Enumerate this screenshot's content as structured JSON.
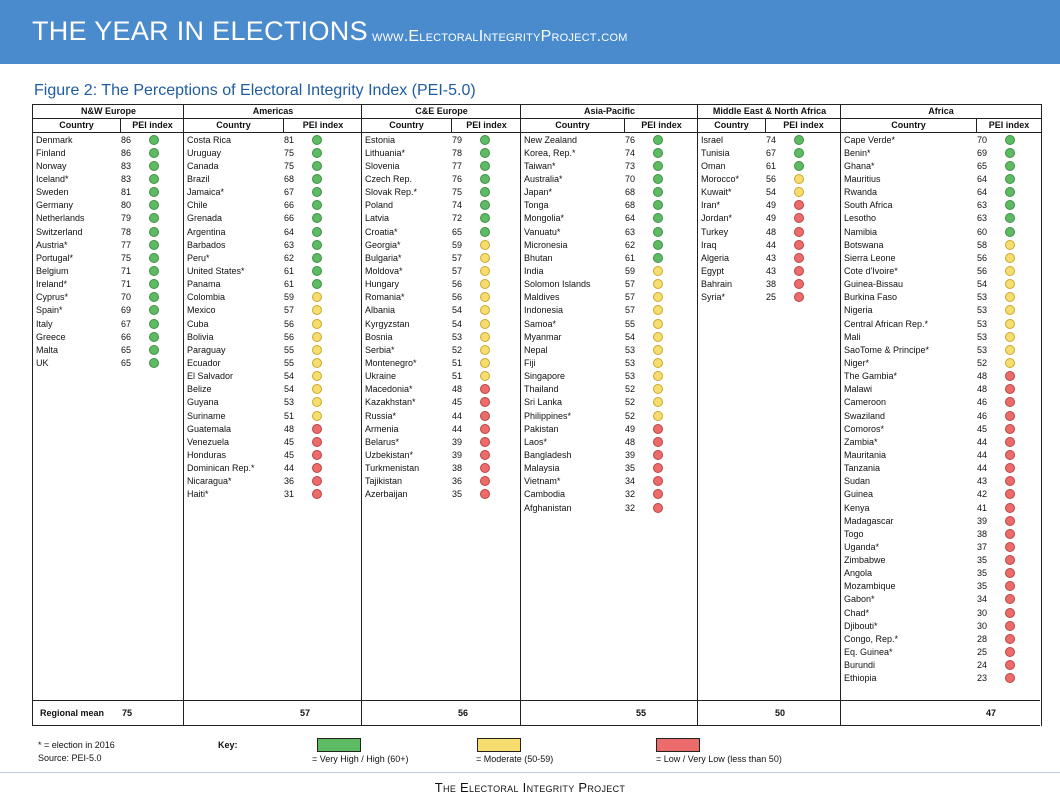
{
  "header": {
    "title": "THE YEAR IN ELECTIONS",
    "url": "www.ElectoralIntegrityProject.com"
  },
  "figure_title": "Figure 2: The Perceptions of Electoral Integrity Index (PEI-5.0)",
  "column_headers": {
    "country": "Country",
    "index": "PEI index"
  },
  "regional_mean_label": "Regional mean",
  "regions": [
    {
      "name": "N&W Europe",
      "mean": "75",
      "rows": [
        [
          "Denmark",
          "86",
          "g"
        ],
        [
          "Finland",
          "86",
          "g"
        ],
        [
          "Norway",
          "83",
          "g"
        ],
        [
          "Iceland*",
          "83",
          "g"
        ],
        [
          "Sweden",
          "81",
          "g"
        ],
        [
          "Germany",
          "80",
          "g"
        ],
        [
          "Netherlands",
          "79",
          "g"
        ],
        [
          "Switzerland",
          "78",
          "g"
        ],
        [
          "Austria*",
          "77",
          "g"
        ],
        [
          "Portugal*",
          "75",
          "g"
        ],
        [
          "Belgium",
          "71",
          "g"
        ],
        [
          "Ireland*",
          "71",
          "g"
        ],
        [
          "Cyprus*",
          "70",
          "g"
        ],
        [
          "Spain*",
          "69",
          "g"
        ],
        [
          "Italy",
          "67",
          "g"
        ],
        [
          "Greece",
          "66",
          "g"
        ],
        [
          "Malta",
          "65",
          "g"
        ],
        [
          "UK",
          "65",
          "g"
        ]
      ]
    },
    {
      "name": "Americas",
      "mean": "57",
      "rows": [
        [
          "Costa Rica",
          "81",
          "g"
        ],
        [
          "Uruguay",
          "75",
          "g"
        ],
        [
          "Canada",
          "75",
          "g"
        ],
        [
          "Brazil",
          "68",
          "g"
        ],
        [
          "Jamaica*",
          "67",
          "g"
        ],
        [
          "Chile",
          "66",
          "g"
        ],
        [
          "Grenada",
          "66",
          "g"
        ],
        [
          "Argentina",
          "64",
          "g"
        ],
        [
          "Barbados",
          "63",
          "g"
        ],
        [
          "Peru*",
          "62",
          "g"
        ],
        [
          "United States*",
          "61",
          "g"
        ],
        [
          "Panama",
          "61",
          "g"
        ],
        [
          "Colombia",
          "59",
          "y"
        ],
        [
          "Mexico",
          "57",
          "y"
        ],
        [
          "Cuba",
          "56",
          "y"
        ],
        [
          "Bolivia",
          "56",
          "y"
        ],
        [
          "Paraguay",
          "55",
          "y"
        ],
        [
          "Ecuador",
          "55",
          "y"
        ],
        [
          "El Salvador",
          "54",
          "y"
        ],
        [
          "Belize",
          "54",
          "y"
        ],
        [
          "Guyana",
          "53",
          "y"
        ],
        [
          "Suriname",
          "51",
          "y"
        ],
        [
          "Guatemala",
          "48",
          "r"
        ],
        [
          "Venezuela",
          "45",
          "r"
        ],
        [
          "Honduras",
          "45",
          "r"
        ],
        [
          "Dominican Rep.*",
          "44",
          "r"
        ],
        [
          "Nicaragua*",
          "36",
          "r"
        ],
        [
          "Haiti*",
          "31",
          "r"
        ]
      ]
    },
    {
      "name": "C&E Europe",
      "mean": "56",
      "rows": [
        [
          "Estonia",
          "79",
          "g"
        ],
        [
          "Lithuania*",
          "78",
          "g"
        ],
        [
          "Slovenia",
          "77",
          "g"
        ],
        [
          "Czech Rep.",
          "76",
          "g"
        ],
        [
          "Slovak Rep.*",
          "75",
          "g"
        ],
        [
          "Poland",
          "74",
          "g"
        ],
        [
          "Latvia",
          "72",
          "g"
        ],
        [
          "Croatia*",
          "65",
          "g"
        ],
        [
          "Georgia*",
          "59",
          "y"
        ],
        [
          "Bulgaria*",
          "57",
          "y"
        ],
        [
          "Moldova*",
          "57",
          "y"
        ],
        [
          "Hungary",
          "56",
          "y"
        ],
        [
          "Romania*",
          "56",
          "y"
        ],
        [
          "Albania",
          "54",
          "y"
        ],
        [
          "Kyrgyzstan",
          "54",
          "y"
        ],
        [
          "Bosnia",
          "53",
          "y"
        ],
        [
          "Serbia*",
          "52",
          "y"
        ],
        [
          "Montenegro*",
          "51",
          "y"
        ],
        [
          "Ukraine",
          "51",
          "y"
        ],
        [
          "Macedonia*",
          "48",
          "r"
        ],
        [
          "Kazakhstan*",
          "45",
          "r"
        ],
        [
          "Russia*",
          "44",
          "r"
        ],
        [
          "Armenia",
          "44",
          "r"
        ],
        [
          "Belarus*",
          "39",
          "r"
        ],
        [
          "Uzbekistan*",
          "39",
          "r"
        ],
        [
          "Turkmenistan",
          "38",
          "r"
        ],
        [
          "Tajikistan",
          "36",
          "r"
        ],
        [
          "Azerbaijan",
          "35",
          "r"
        ]
      ]
    },
    {
      "name": "Asia-Pacific",
      "mean": "55",
      "rows": [
        [
          "New Zealand",
          "76",
          "g"
        ],
        [
          "Korea, Rep.*",
          "74",
          "g"
        ],
        [
          "Taiwan*",
          "73",
          "g"
        ],
        [
          "Australia*",
          "70",
          "g"
        ],
        [
          "Japan*",
          "68",
          "g"
        ],
        [
          "Tonga",
          "68",
          "g"
        ],
        [
          "Mongolia*",
          "64",
          "g"
        ],
        [
          "Vanuatu*",
          "63",
          "g"
        ],
        [
          "Micronesia",
          "62",
          "g"
        ],
        [
          "Bhutan",
          "61",
          "g"
        ],
        [
          "India",
          "59",
          "y"
        ],
        [
          "Solomon Islands",
          "57",
          "y"
        ],
        [
          "Maldives",
          "57",
          "y"
        ],
        [
          "Indonesia",
          "57",
          "y"
        ],
        [
          "Samoa*",
          "55",
          "y"
        ],
        [
          "Myanmar",
          "54",
          "y"
        ],
        [
          "Nepal",
          "53",
          "y"
        ],
        [
          "Fiji",
          "53",
          "y"
        ],
        [
          "Singapore",
          "53",
          "y"
        ],
        [
          "Thailand",
          "52",
          "y"
        ],
        [
          "Sri Lanka",
          "52",
          "y"
        ],
        [
          "Philippines*",
          "52",
          "y"
        ],
        [
          "Pakistan",
          "49",
          "r"
        ],
        [
          "Laos*",
          "48",
          "r"
        ],
        [
          "Bangladesh",
          "39",
          "r"
        ],
        [
          "Malaysia",
          "35",
          "r"
        ],
        [
          "Vietnam*",
          "34",
          "r"
        ],
        [
          "Cambodia",
          "32",
          "r"
        ],
        [
          "Afghanistan",
          "32",
          "r"
        ]
      ]
    },
    {
      "name": "Middle East & North Africa",
      "mean": "50",
      "rows": [
        [
          "Israel",
          "74",
          "g"
        ],
        [
          "Tunisia",
          "67",
          "g"
        ],
        [
          "Oman",
          "61",
          "g"
        ],
        [
          "Morocco*",
          "56",
          "y"
        ],
        [
          "Kuwait*",
          "54",
          "y"
        ],
        [
          "Iran*",
          "49",
          "r"
        ],
        [
          "Jordan*",
          "49",
          "r"
        ],
        [
          "Turkey",
          "48",
          "r"
        ],
        [
          "Iraq",
          "44",
          "r"
        ],
        [
          "Algeria",
          "43",
          "r"
        ],
        [
          "Egypt",
          "43",
          "r"
        ],
        [
          "Bahrain",
          "38",
          "r"
        ],
        [
          "Syria*",
          "25",
          "r"
        ]
      ]
    },
    {
      "name": "Africa",
      "mean": "47",
      "rows": [
        [
          "Cape Verde*",
          "70",
          "g"
        ],
        [
          "Benin*",
          "69",
          "g"
        ],
        [
          "Ghana*",
          "65",
          "g"
        ],
        [
          "Mauritius",
          "64",
          "g"
        ],
        [
          "Rwanda",
          "64",
          "g"
        ],
        [
          "South Africa",
          "63",
          "g"
        ],
        [
          "Lesotho",
          "63",
          "g"
        ],
        [
          "Namibia",
          "60",
          "g"
        ],
        [
          "Botswana",
          "58",
          "y"
        ],
        [
          "Sierra Leone",
          "56",
          "y"
        ],
        [
          "Cote d'Ivoire*",
          "56",
          "y"
        ],
        [
          "Guinea-Bissau",
          "54",
          "y"
        ],
        [
          "Burkina Faso",
          "53",
          "y"
        ],
        [
          "Nigeria",
          "53",
          "y"
        ],
        [
          "Central African Rep.*",
          "53",
          "y"
        ],
        [
          "Mali",
          "53",
          "y"
        ],
        [
          "SaoTome & Principe*",
          "53",
          "y"
        ],
        [
          "Niger*",
          "52",
          "y"
        ],
        [
          "The Gambia*",
          "48",
          "r"
        ],
        [
          "Malawi",
          "48",
          "r"
        ],
        [
          "Cameroon",
          "46",
          "r"
        ],
        [
          "Swaziland",
          "46",
          "r"
        ],
        [
          "Comoros*",
          "45",
          "r"
        ],
        [
          "Zambia*",
          "44",
          "r"
        ],
        [
          "Mauritania",
          "44",
          "r"
        ],
        [
          "Tanzania",
          "44",
          "r"
        ],
        [
          "Sudan",
          "43",
          "r"
        ],
        [
          "Guinea",
          "42",
          "r"
        ],
        [
          "Kenya",
          "41",
          "r"
        ],
        [
          "Madagascar",
          "39",
          "r"
        ],
        [
          "Togo",
          "38",
          "r"
        ],
        [
          "Uganda*",
          "37",
          "r"
        ],
        [
          "Zimbabwe",
          "35",
          "r"
        ],
        [
          "Angola",
          "35",
          "r"
        ],
        [
          "Mozambique",
          "35",
          "r"
        ],
        [
          "Gabon*",
          "34",
          "r"
        ],
        [
          "Chad*",
          "30",
          "r"
        ],
        [
          "Djibouti*",
          "30",
          "r"
        ],
        [
          "Congo, Rep.*",
          "28",
          "r"
        ],
        [
          "Eq. Guinea*",
          "25",
          "r"
        ],
        [
          "Burundi",
          "24",
          "r"
        ],
        [
          "Ethiopia",
          "23",
          "r"
        ]
      ]
    }
  ],
  "notes": {
    "election": "* = election in 2016",
    "source": "Source: PEI-5.0"
  },
  "key": {
    "label": "Key:",
    "items": [
      {
        "color": "#5dbb63",
        "text": "= Very High / High (60+)"
      },
      {
        "color": "#f7dc6f",
        "text": "= Moderate (50-59)"
      },
      {
        "color": "#ec6b6b",
        "text": "= Low / Very Low (less than 50)"
      }
    ]
  },
  "footer": "The Electoral Integrity Project"
}
